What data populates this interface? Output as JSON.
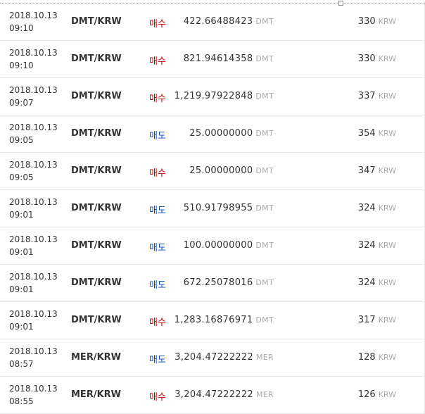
{
  "colors": {
    "buy": "#c70000",
    "sell": "#0b4fbf"
  },
  "trades": [
    {
      "date": "2018.10.13",
      "time": "09:10",
      "pair": "DMT/KRW",
      "side": "매수",
      "type": "buy",
      "qty": "422.66488423",
      "qty_unit": "DMT",
      "price": "330",
      "price_unit": "KRW"
    },
    {
      "date": "2018.10.13",
      "time": "09:10",
      "pair": "DMT/KRW",
      "side": "매수",
      "type": "buy",
      "qty": "821.94614358",
      "qty_unit": "DMT",
      "price": "330",
      "price_unit": "KRW"
    },
    {
      "date": "2018.10.13",
      "time": "09:07",
      "pair": "DMT/KRW",
      "side": "매수",
      "type": "buy",
      "qty": "1,219.97922848",
      "qty_unit": "DMT",
      "price": "337",
      "price_unit": "KRW"
    },
    {
      "date": "2018.10.13",
      "time": "09:05",
      "pair": "DMT/KRW",
      "side": "매도",
      "type": "sell",
      "qty": "25.00000000",
      "qty_unit": "DMT",
      "price": "354",
      "price_unit": "KRW"
    },
    {
      "date": "2018.10.13",
      "time": "09:05",
      "pair": "DMT/KRW",
      "side": "매수",
      "type": "buy",
      "qty": "25.00000000",
      "qty_unit": "DMT",
      "price": "347",
      "price_unit": "KRW"
    },
    {
      "date": "2018.10.13",
      "time": "09:01",
      "pair": "DMT/KRW",
      "side": "매도",
      "type": "sell",
      "qty": "510.91798955",
      "qty_unit": "DMT",
      "price": "324",
      "price_unit": "KRW"
    },
    {
      "date": "2018.10.13",
      "time": "09:01",
      "pair": "DMT/KRW",
      "side": "매도",
      "type": "sell",
      "qty": "100.00000000",
      "qty_unit": "DMT",
      "price": "324",
      "price_unit": "KRW"
    },
    {
      "date": "2018.10.13",
      "time": "09:01",
      "pair": "DMT/KRW",
      "side": "매도",
      "type": "sell",
      "qty": "672.25078016",
      "qty_unit": "DMT",
      "price": "324",
      "price_unit": "KRW"
    },
    {
      "date": "2018.10.13",
      "time": "09:01",
      "pair": "DMT/KRW",
      "side": "매수",
      "type": "buy",
      "qty": "1,283.16876971",
      "qty_unit": "DMT",
      "price": "317",
      "price_unit": "KRW"
    },
    {
      "date": "2018.10.13",
      "time": "08:57",
      "pair": "MER/KRW",
      "side": "매도",
      "type": "sell",
      "qty": "3,204.47222222",
      "qty_unit": "MER",
      "price": "128",
      "price_unit": "KRW"
    },
    {
      "date": "2018.10.13",
      "time": "08:55",
      "pair": "MER/KRW",
      "side": "매수",
      "type": "buy",
      "qty": "3,204.47222222",
      "qty_unit": "MER",
      "price": "126",
      "price_unit": "KRW"
    }
  ]
}
